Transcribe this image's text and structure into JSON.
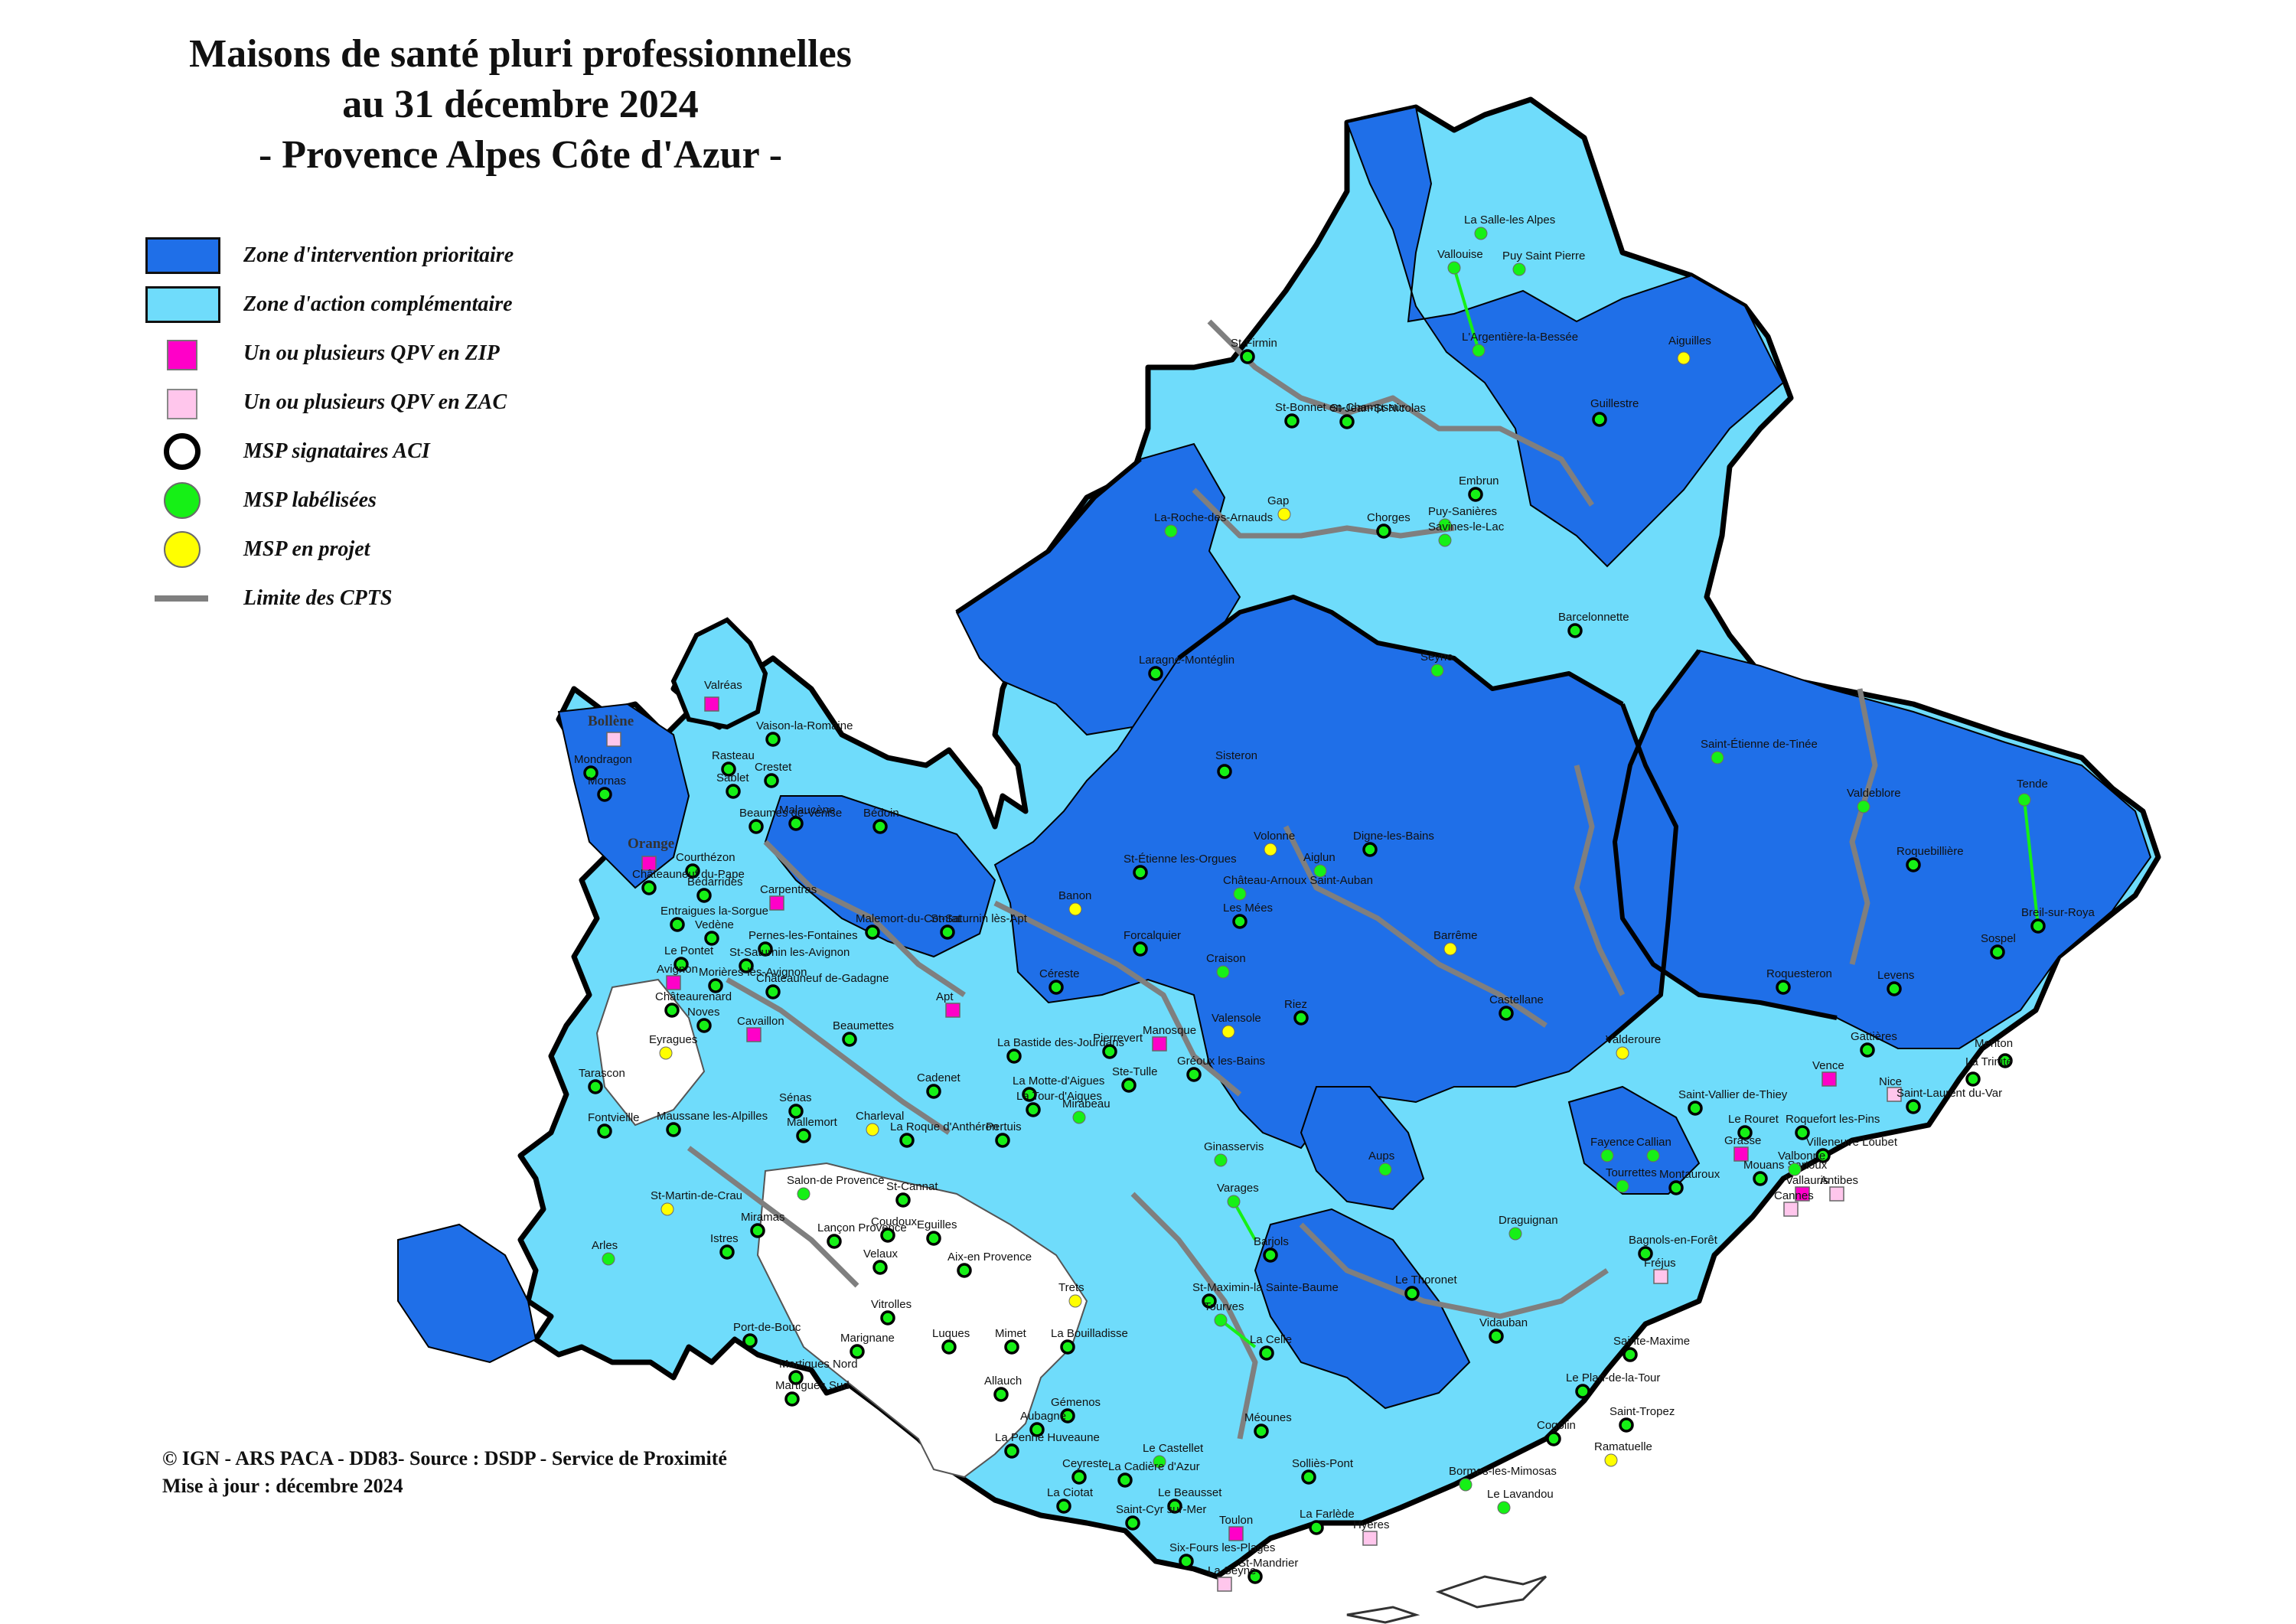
{
  "title": {
    "line1": "Maisons de santé pluri professionnelles",
    "line2": "au 31 décembre 2024",
    "line3": "- Provence Alpes Côte d'Azur -"
  },
  "colors": {
    "zip": "#1f6fe8",
    "zac": "#6fdcfb",
    "qpv_zip": "#ff00c8",
    "qpv_zac": "#ffc6ec",
    "msp_labelisee": "#16f016",
    "msp_projet": "#ffff00",
    "cpts_limit": "#7f7f7f"
  },
  "legend": [
    {
      "symbol": "zip-swatch",
      "label": "Zone d'intervention prioritaire"
    },
    {
      "symbol": "zac-swatch",
      "label": "Zone d'action complémentaire"
    },
    {
      "symbol": "qpv-zip-square",
      "label": "Un ou plusieurs QPV en ZIP"
    },
    {
      "symbol": "qpv-zac-square",
      "label": "Un ou plusieurs QPV en ZAC"
    },
    {
      "symbol": "aci-circle",
      "label": "MSP signataires ACI"
    },
    {
      "symbol": "labelisee-circle",
      "label": "MSP labélisées"
    },
    {
      "symbol": "projet-circle",
      "label": "MSP en projet"
    },
    {
      "symbol": "cpts-line",
      "label": "Limite des CPTS"
    }
  ],
  "footer": {
    "line1": "© IGN - ARS PACA - DD83- Source : DSDP - Service de Proximité",
    "line2": "Mise à jour : décembre 2024"
  },
  "places": [
    {
      "name": "La Salle-les Alpes",
      "kind": "labelisee"
    },
    {
      "name": "Vallouise",
      "kind": "labelisee"
    },
    {
      "name": "Puy Saint Pierre",
      "kind": "labelisee"
    },
    {
      "name": "L'Argentière-la-Bessée",
      "kind": "labelisee"
    },
    {
      "name": "Aiguilles",
      "kind": "projet"
    },
    {
      "name": "Guillestre",
      "kind": "aci"
    },
    {
      "name": "St-Firmin",
      "kind": "aci"
    },
    {
      "name": "St-Bonnet en-Champsaur",
      "kind": "aci"
    },
    {
      "name": "St-Jean-St-Nicolas",
      "kind": "aci"
    },
    {
      "name": "Embrun",
      "kind": "aci"
    },
    {
      "name": "La-Roche-des-Arnauds",
      "kind": "labelisee"
    },
    {
      "name": "Gap",
      "kind": "projet"
    },
    {
      "name": "Chorges",
      "kind": "aci"
    },
    {
      "name": "Puy-Sanières",
      "kind": "labelisee"
    },
    {
      "name": "Savines-le-Lac",
      "kind": "labelisee"
    },
    {
      "name": "Barcelonnette",
      "kind": "aci"
    },
    {
      "name": "Laragne-Montéglin",
      "kind": "aci"
    },
    {
      "name": "Seyne",
      "kind": "labelisee"
    },
    {
      "name": "Valréas",
      "kind": "qpv-zip"
    },
    {
      "name": "Bollène",
      "kind": "qpv-zac"
    },
    {
      "name": "Vaison-la-Romaine",
      "kind": "aci"
    },
    {
      "name": "Rasteau",
      "kind": "aci"
    },
    {
      "name": "Crestet",
      "kind": "aci"
    },
    {
      "name": "Sablet",
      "kind": "aci"
    },
    {
      "name": "Mondragon",
      "kind": "aci"
    },
    {
      "name": "Mornas",
      "kind": "aci"
    },
    {
      "name": "Beaumes de-Venise",
      "kind": "aci"
    },
    {
      "name": "Malaucène",
      "kind": "aci"
    },
    {
      "name": "Bédoin",
      "kind": "aci"
    },
    {
      "name": "Orange",
      "kind": "qpv-zip"
    },
    {
      "name": "Courthézon",
      "kind": "aci"
    },
    {
      "name": "Carpentras",
      "kind": "qpv-zip"
    },
    {
      "name": "Châteauneuf du-Pape",
      "kind": "aci"
    },
    {
      "name": "Bédarrides",
      "kind": "aci"
    },
    {
      "name": "Entraigues la-Sorgue",
      "kind": "aci"
    },
    {
      "name": "Vedène",
      "kind": "aci"
    },
    {
      "name": "Malemort-du-Comtat",
      "kind": "aci"
    },
    {
      "name": "Pernes-les-Fontaines",
      "kind": "aci"
    },
    {
      "name": "St-Saturnin les-Avignon",
      "kind": "aci"
    },
    {
      "name": "St-Saturnin lès-Apt",
      "kind": "aci"
    },
    {
      "name": "Le Pontet",
      "kind": "aci"
    },
    {
      "name": "Avignon",
      "kind": "qpv-zip"
    },
    {
      "name": "Morières-lès-Avignon",
      "kind": "aci"
    },
    {
      "name": "Châteauneuf de-Gadagne",
      "kind": "aci"
    },
    {
      "name": "Châteaurenard",
      "kind": "aci"
    },
    {
      "name": "Noves",
      "kind": "aci"
    },
    {
      "name": "Eyragues",
      "kind": "projet"
    },
    {
      "name": "Cavaillon",
      "kind": "qpv-zip"
    },
    {
      "name": "Beaumettes",
      "kind": "aci"
    },
    {
      "name": "Apt",
      "kind": "qpv-zip"
    },
    {
      "name": "Céreste",
      "kind": "aci"
    },
    {
      "name": "Tarascon",
      "kind": "aci"
    },
    {
      "name": "Fontvieille",
      "kind": "aci"
    },
    {
      "name": "Maussane les-Alpilles",
      "kind": "aci"
    },
    {
      "name": "Sénas",
      "kind": "aci"
    },
    {
      "name": "Mallemort",
      "kind": "aci"
    },
    {
      "name": "Charleval",
      "kind": "projet"
    },
    {
      "name": "La Roque d'Anthéron",
      "kind": "aci"
    },
    {
      "name": "St-Martin-de-Crau",
      "kind": "projet"
    },
    {
      "name": "Salon-de Provence",
      "kind": "labelisee"
    },
    {
      "name": "St-Cannat",
      "kind": "aci"
    },
    {
      "name": "Arles",
      "kind": "labelisee"
    },
    {
      "name": "Miramas",
      "kind": "aci"
    },
    {
      "name": "Istres",
      "kind": "aci"
    },
    {
      "name": "Lançon Provence",
      "kind": "aci"
    },
    {
      "name": "Coudoux",
      "kind": "aci"
    },
    {
      "name": "Eguilles",
      "kind": "aci"
    },
    {
      "name": "Velaux",
      "kind": "aci"
    },
    {
      "name": "Aix-en Provence",
      "kind": "aci"
    },
    {
      "name": "Port-de-Bouc",
      "kind": "aci"
    },
    {
      "name": "Vitrolles",
      "kind": "aci"
    },
    {
      "name": "Marignane",
      "kind": "aci"
    },
    {
      "name": "Martigues Nord",
      "kind": "aci"
    },
    {
      "name": "Martigues Sud",
      "kind": "aci"
    },
    {
      "name": "Sisteron",
      "kind": "aci"
    },
    {
      "name": "St-Étienne les-Orgues",
      "kind": "aci"
    },
    {
      "name": "Volonne",
      "kind": "projet"
    },
    {
      "name": "Château-Arnoux Saint-Auban",
      "kind": "labelisee"
    },
    {
      "name": "Digne-les-Bains",
      "kind": "aci"
    },
    {
      "name": "Aiglun",
      "kind": "labelisee"
    },
    {
      "name": "Banon",
      "kind": "projet"
    },
    {
      "name": "Forcalquier",
      "kind": "aci"
    },
    {
      "name": "Les Mées",
      "kind": "aci"
    },
    {
      "name": "Barrême",
      "kind": "projet"
    },
    {
      "name": "Craison",
      "kind": "labelisee"
    },
    {
      "name": "Manosque",
      "kind": "qpv-zip"
    },
    {
      "name": "Valensole",
      "kind": "projet"
    },
    {
      "name": "Riez",
      "kind": "aci"
    },
    {
      "name": "Castellane",
      "kind": "aci"
    },
    {
      "name": "La Bastide des-Jourdans",
      "kind": "aci"
    },
    {
      "name": "Pierrevert",
      "kind": "aci"
    },
    {
      "name": "Gréoux les-Bains",
      "kind": "aci"
    },
    {
      "name": "Ste-Tulle",
      "kind": "aci"
    },
    {
      "name": "Cadenet",
      "kind": "aci"
    },
    {
      "name": "La Motte-d'Aigues",
      "kind": "aci"
    },
    {
      "name": "La Tour-d'Aigues",
      "kind": "aci"
    },
    {
      "name": "Pertuis",
      "kind": "aci"
    },
    {
      "name": "Mirabeau",
      "kind": "labelisee"
    },
    {
      "name": "Saint-Étienne de-Tinée",
      "kind": "labelisee"
    },
    {
      "name": "Valdeblore",
      "kind": "labelisee"
    },
    {
      "name": "Tende",
      "kind": "labelisee"
    },
    {
      "name": "Roquebillière",
      "kind": "aci"
    },
    {
      "name": "Breil-sur-Roya",
      "kind": "aci"
    },
    {
      "name": "Sospel",
      "kind": "aci"
    },
    {
      "name": "Roquesteron",
      "kind": "aci"
    },
    {
      "name": "Levens",
      "kind": "aci"
    },
    {
      "name": "Gattières",
      "kind": "aci"
    },
    {
      "name": "Menton",
      "kind": "aci"
    },
    {
      "name": "La Trinité",
      "kind": "aci"
    },
    {
      "name": "Vence",
      "kind": "qpv-zip"
    },
    {
      "name": "Valderoure",
      "kind": "projet"
    },
    {
      "name": "Saint-Vallier de-Thiey",
      "kind": "aci"
    },
    {
      "name": "Le Rouret",
      "kind": "aci"
    },
    {
      "name": "Roquefort les-Pins",
      "kind": "aci"
    },
    {
      "name": "Nice",
      "kind": "qpv-zac"
    },
    {
      "name": "Saint-Laurent du-Var",
      "kind": "aci"
    },
    {
      "name": "Grasse",
      "kind": "qpv-zip"
    },
    {
      "name": "Villeneuve Loubet",
      "kind": "aci"
    },
    {
      "name": "Mouans Sartoux",
      "kind": "aci"
    },
    {
      "name": "Valbonne",
      "kind": "labelisee"
    },
    {
      "name": "Vallauris",
      "kind": "qpv-zip"
    },
    {
      "name": "Antibes",
      "kind": "qpv-zac"
    },
    {
      "name": "Cannes",
      "kind": "qpv-zac"
    },
    {
      "name": "Fayence",
      "kind": "labelisee"
    },
    {
      "name": "Callian",
      "kind": "labelisee"
    },
    {
      "name": "Tourrettes",
      "kind": "labelisee"
    },
    {
      "name": "Montauroux",
      "kind": "aci"
    },
    {
      "name": "Ginasservis",
      "kind": "labelisee"
    },
    {
      "name": "Varages",
      "kind": "labelisee"
    },
    {
      "name": "Aups",
      "kind": "labelisee"
    },
    {
      "name": "Draguignan",
      "kind": "labelisee"
    },
    {
      "name": "Bagnols-en-Forêt",
      "kind": "aci"
    },
    {
      "name": "Barjols",
      "kind": "aci"
    },
    {
      "name": "Fréjus",
      "kind": "qpv-zac"
    },
    {
      "name": "St-Maximin-la Sainte-Baume",
      "kind": "aci"
    },
    {
      "name": "Le Thoronet",
      "kind": "aci"
    },
    {
      "name": "Tourves",
      "kind": "labelisee"
    },
    {
      "name": "La Celle",
      "kind": "aci"
    },
    {
      "name": "Vidauban",
      "kind": "aci"
    },
    {
      "name": "Sainte-Maxime",
      "kind": "aci"
    },
    {
      "name": "Le Plan-de-la-Tour",
      "kind": "aci"
    },
    {
      "name": "Trets",
      "kind": "projet"
    },
    {
      "name": "Mimet",
      "kind": "aci"
    },
    {
      "name": "La Bouilladisse",
      "kind": "aci"
    },
    {
      "name": "Allauch",
      "kind": "aci"
    },
    {
      "name": "Luques",
      "kind": "aci"
    },
    {
      "name": "Gémenos",
      "kind": "aci"
    },
    {
      "name": "Aubagne",
      "kind": "aci"
    },
    {
      "name": "La Penne Huveaune",
      "kind": "aci"
    },
    {
      "name": "Ceyreste",
      "kind": "aci"
    },
    {
      "name": "Le Castellet",
      "kind": "labelisee"
    },
    {
      "name": "La Cadière d'Azur",
      "kind": "aci"
    },
    {
      "name": "La Ciotat",
      "kind": "aci"
    },
    {
      "name": "Méounes",
      "kind": "aci"
    },
    {
      "name": "Le Beausset",
      "kind": "aci"
    },
    {
      "name": "Solliès-Pont",
      "kind": "aci"
    },
    {
      "name": "Cogolin",
      "kind": "aci"
    },
    {
      "name": "Saint-Tropez",
      "kind": "aci"
    },
    {
      "name": "Ramatuelle",
      "kind": "projet"
    },
    {
      "name": "Bormes-les-Mimosas",
      "kind": "labelisee"
    },
    {
      "name": "Le Lavandou",
      "kind": "labelisee"
    },
    {
      "name": "La Farlède",
      "kind": "aci"
    },
    {
      "name": "Hyères",
      "kind": "qpv-zac"
    },
    {
      "name": "Toulon",
      "kind": "qpv-zip"
    },
    {
      "name": "Saint-Cyr sur-Mer",
      "kind": "aci"
    },
    {
      "name": "Six-Fours les-Plages",
      "kind": "aci"
    },
    {
      "name": "St-Mandrier",
      "kind": "aci"
    },
    {
      "name": "La Seyne",
      "kind": "qpv-zac"
    }
  ]
}
